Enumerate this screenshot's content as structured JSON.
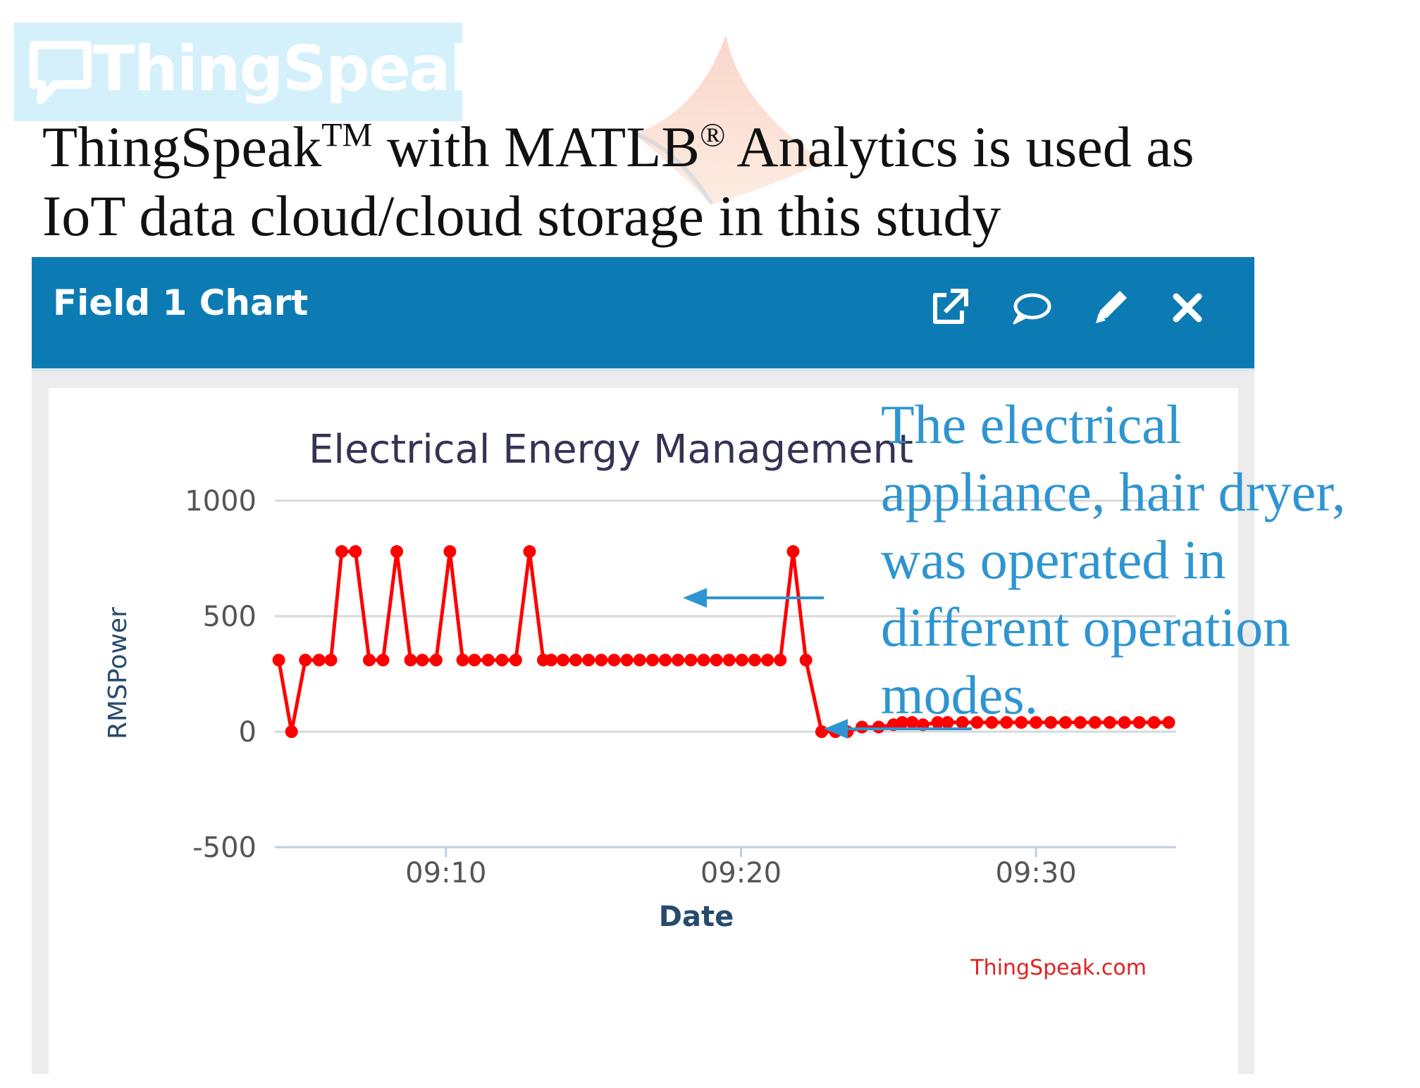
{
  "logo": {
    "text": "ThingSpeak",
    "tm": "™"
  },
  "headline": {
    "line1_a": "ThingSpeak",
    "line1_sup1": "TM",
    "line1_b": " with MATLB",
    "line1_sup2": "®",
    "line1_c": " Analytics is used as",
    "line2": "IoT data cloud/cloud storage in this study"
  },
  "panel": {
    "title": "Field 1 Chart",
    "icons": [
      "external-link-icon",
      "comment-icon",
      "pencil-icon",
      "close-icon"
    ],
    "header_color": "#0d7bb3"
  },
  "annotation": {
    "text_lines": [
      "The electrical",
      "appliance, hair dryer,",
      "was operated in",
      "different operation",
      "modes."
    ],
    "color": "#2e95d1"
  },
  "chart_data": {
    "type": "line",
    "title": "Electrical Energy Management",
    "xlabel": "Date",
    "ylabel": "RMSPower",
    "credit": "ThingSpeak.com",
    "ylim": [
      -500,
      1000
    ],
    "yticks": [
      1000,
      500,
      0,
      -500
    ],
    "xlim": [
      "09:04:12",
      "09:34:45"
    ],
    "xticks": [
      "09:10",
      "09:20",
      "09:30"
    ],
    "grid": true,
    "series_color": "#ff0000",
    "series": [
      {
        "x": [
          "09:04:20",
          "09:04:46",
          "09:05:14",
          "09:05:42",
          "09:06:06",
          "09:06:28",
          "09:06:56",
          "09:07:24",
          "09:07:52",
          "09:08:20",
          "09:08:48",
          "09:09:12",
          "09:09:40",
          "09:10:08",
          "09:10:34",
          "09:10:58",
          "09:11:26",
          "09:11:54",
          "09:12:22",
          "09:12:50",
          "09:13:18",
          "09:13:34",
          "09:13:58",
          "09:14:24",
          "09:14:50",
          "09:15:16",
          "09:15:42",
          "09:16:08",
          "09:16:34",
          "09:17:00",
          "09:17:26",
          "09:17:52",
          "09:18:18",
          "09:18:44",
          "09:19:10",
          "09:19:36",
          "09:20:02",
          "09:20:28",
          "09:20:54",
          "09:21:20",
          "09:21:46",
          "09:22:12",
          "09:22:44",
          "09:23:12",
          "09:23:36",
          "09:24:06",
          "09:24:40",
          "09:25:10",
          "09:25:28",
          "09:25:48",
          "09:26:10",
          "09:26:40",
          "09:27:00",
          "09:27:30",
          "09:28:00",
          "09:28:30",
          "09:29:00",
          "09:29:30",
          "09:30:00",
          "09:30:30",
          "09:31:00",
          "09:31:30",
          "09:32:00",
          "09:32:30",
          "09:33:00",
          "09:33:30",
          "09:34:00",
          "09:34:30"
        ],
        "y": [
          310,
          0,
          310,
          310,
          310,
          780,
          780,
          310,
          310,
          780,
          310,
          310,
          310,
          780,
          310,
          310,
          310,
          310,
          310,
          780,
          310,
          310,
          310,
          310,
          310,
          310,
          310,
          310,
          310,
          310,
          310,
          310,
          310,
          310,
          310,
          310,
          310,
          310,
          310,
          310,
          780,
          310,
          0,
          0,
          0,
          20,
          20,
          30,
          40,
          40,
          30,
          40,
          40,
          40,
          40,
          40,
          40,
          40,
          40,
          40,
          40,
          40,
          40,
          40,
          40,
          40,
          40,
          40
        ]
      }
    ]
  }
}
